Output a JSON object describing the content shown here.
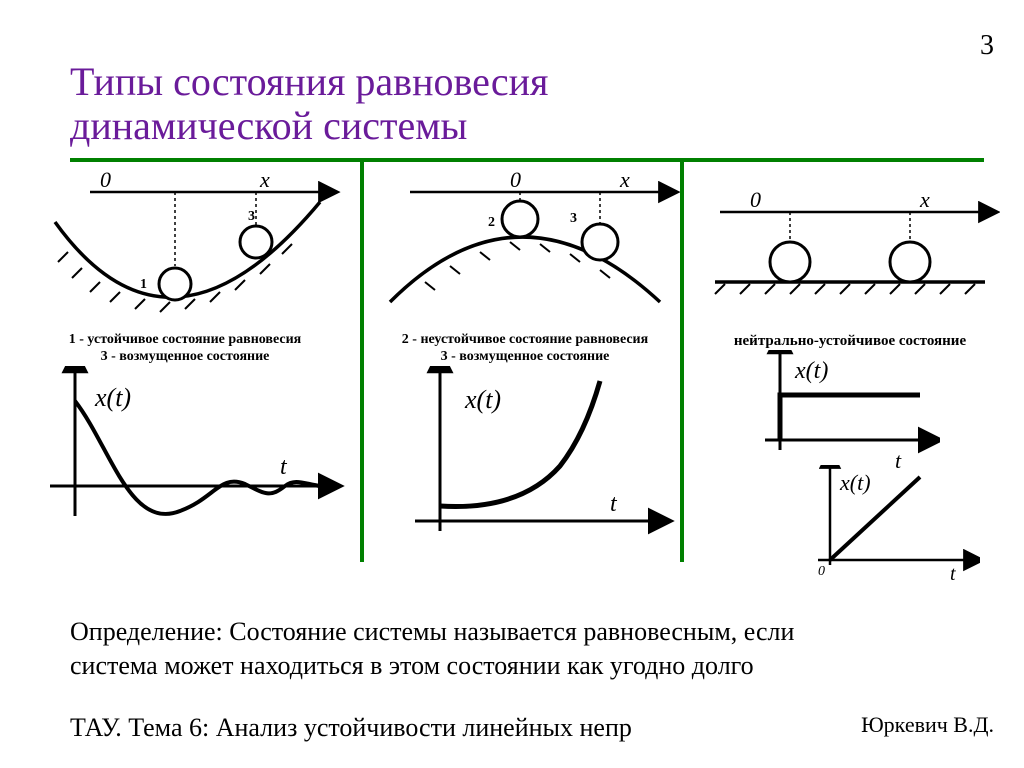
{
  "page_number": "3",
  "title_line1": "Типы состояния равновесия",
  "title_line2": "динамической системы",
  "title_color": "#6a1b9a",
  "rule_color": "#008000",
  "axis_origin_label": "0",
  "axis_x_label": "x",
  "time_fn_label": "x(t)",
  "time_axis_label": "t",
  "panel1": {
    "ball_label_1": "1",
    "ball_label_3": "3",
    "caption_line1": "1 - устойчивое состояние равновесия",
    "caption_line2": "3 - возмущенное состояние"
  },
  "panel2": {
    "ball_label_2": "2",
    "ball_label_3": "3",
    "caption_line1": "2 - неустойчивое состояние равновесия",
    "caption_line2": "3 - возмущенное состояние"
  },
  "panel3": {
    "caption": "нейтрально-устойчивое состояние"
  },
  "definition": "Определение: Состояние системы называется равновесным, если система может находиться в этом состоянии как угодно долго",
  "footer_topic": "ТАУ. Тема 6: Анализ устойчивости линейных непр",
  "footer_author": "Юркевич В.Д.",
  "stroke": "#000000",
  "stroke_width": 2.5,
  "stroke_width_heavy": 4
}
